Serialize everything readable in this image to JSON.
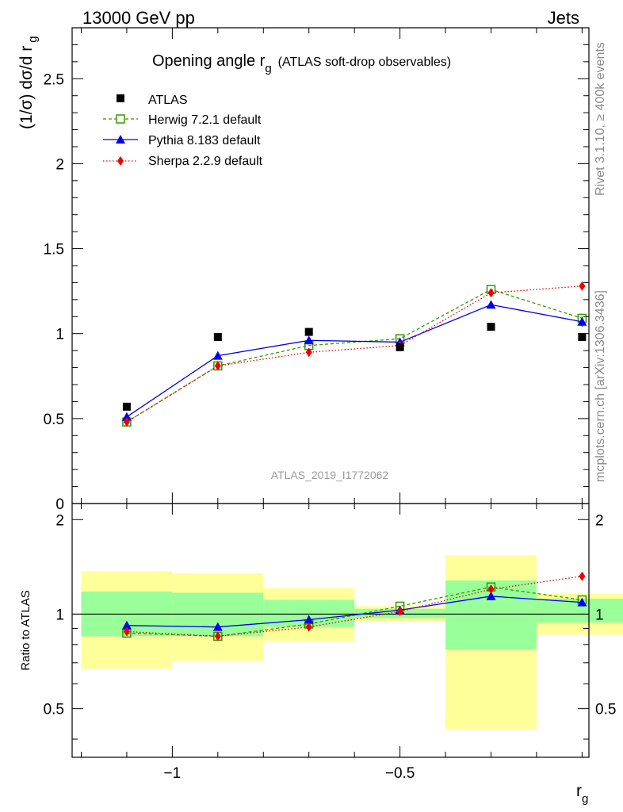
{
  "header": {
    "left": "13000 GeV pp",
    "right": "Jets"
  },
  "side": {
    "rivet": "Rivet 3.1.10, ≥ 400k events",
    "mcplots": "mcplots.cern.ch [arXiv:1306.3436]"
  },
  "chart_data": {
    "type": "line",
    "title": "Opening angle r",
    "title_sub": "g",
    "title_suffix": "(ATLAS soft-drop observables)",
    "analysis_id": "ATLAS_2019_I1772062",
    "xlabel": "r",
    "xlabel_sub": "g",
    "ylabel": "(1/σ) dσ/d r",
    "ylabel_sub": "g",
    "ratio_ylabel": "Ratio to ATLAS",
    "xlim": [
      -1.22,
      -0.085
    ],
    "ylim": [
      0,
      2.8
    ],
    "ratio_ylim": [
      0.35,
      2.25
    ],
    "x_ticks": [
      -1,
      -0.5
    ],
    "x_tick_labels": [
      "−1",
      "−0.5"
    ],
    "y_ticks": [
      0.5,
      1,
      1.5,
      2,
      2.5
    ],
    "y_tick_labels": [
      "0.5",
      "1",
      "1.5",
      "2",
      "2.5"
    ],
    "y_bottom_label": "0",
    "ratio_ticks": [
      0.5,
      1,
      2
    ],
    "ratio_tick_labels": [
      "0.5",
      "1",
      "2"
    ],
    "x": [
      -1.1,
      -0.9,
      -0.7,
      -0.5,
      -0.3,
      -0.1
    ],
    "bin_edges": [
      -1.2,
      -1.0,
      -0.8,
      -0.6,
      -0.4,
      -0.2,
      -0.0
    ],
    "data": {
      "name": "ATLAS",
      "values": [
        0.57,
        0.98,
        1.01,
        0.92,
        1.04,
        0.98
      ]
    },
    "series": [
      {
        "name": "Herwig 7.2.1 default",
        "color": "#339900",
        "marker": "open-square",
        "line": "dashed",
        "values": [
          0.48,
          0.81,
          0.93,
          0.97,
          1.26,
          1.09
        ],
        "ratio": [
          0.87,
          0.85,
          0.93,
          1.06,
          1.22,
          1.11
        ]
      },
      {
        "name": "Pythia 8.183 default",
        "color": "#0000ee",
        "marker": "triangle",
        "line": "solid",
        "values": [
          0.51,
          0.87,
          0.96,
          0.95,
          1.17,
          1.07
        ],
        "ratio": [
          0.92,
          0.91,
          0.96,
          1.03,
          1.14,
          1.09
        ],
        "errors": [
          0.02,
          0.02,
          0.01,
          0.01,
          0.02,
          0.03
        ]
      },
      {
        "name": "Sherpa 2.2.9 default",
        "color": "#ee0000",
        "marker": "diamond",
        "line": "dotted",
        "values": [
          0.48,
          0.81,
          0.89,
          0.93,
          1.24,
          1.28
        ],
        "ratio": [
          0.88,
          0.85,
          0.91,
          1.02,
          1.2,
          1.32
        ]
      }
    ],
    "bands_inner": [
      [
        0.85,
        1.18
      ],
      [
        0.85,
        1.17
      ],
      [
        0.91,
        1.11
      ],
      [
        0.97,
        1.04
      ],
      [
        0.77,
        1.28
      ],
      [
        0.94,
        1.12
      ]
    ],
    "bands_outer": [
      [
        0.67,
        1.37
      ],
      [
        0.71,
        1.35
      ],
      [
        0.82,
        1.21
      ],
      [
        0.95,
        1.06
      ],
      [
        0.43,
        1.54
      ],
      [
        0.86,
        1.16
      ]
    ]
  }
}
